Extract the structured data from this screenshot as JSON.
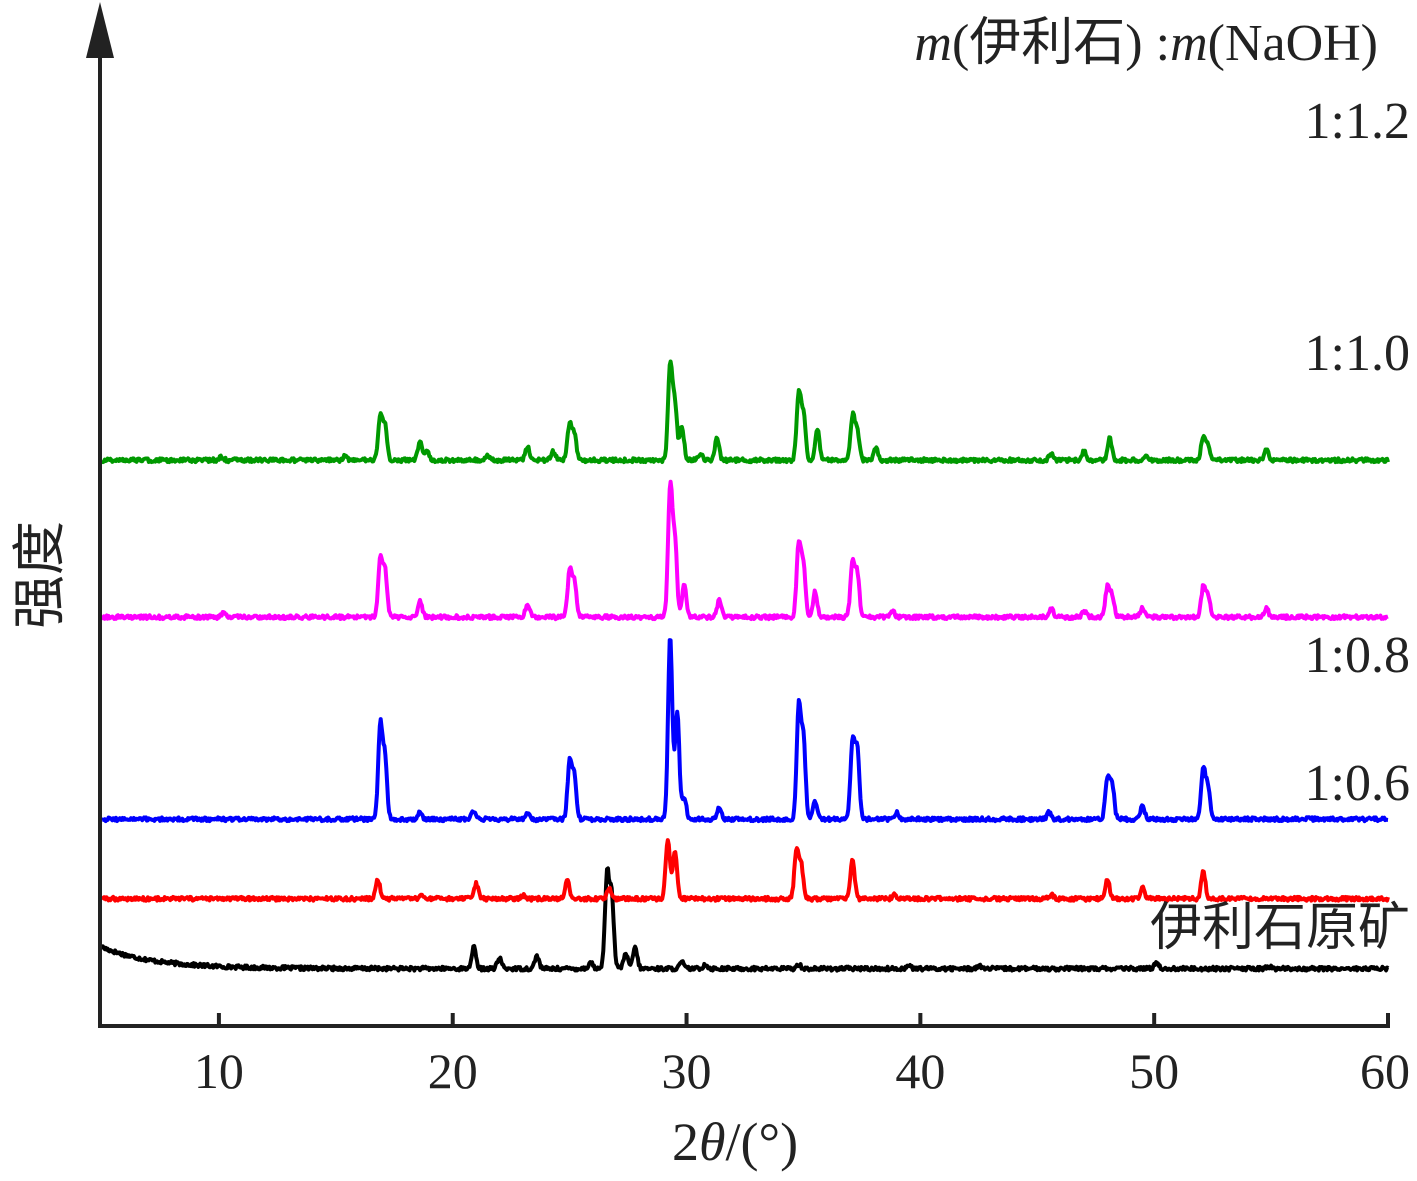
{
  "chart_data": {
    "type": "line",
    "title": "",
    "legend_title": {
      "part1": "m",
      "part2": "(伊利石) :",
      "part3": "m",
      "part4": "(NaOH)"
    },
    "xlabel": {
      "prefix": "2",
      "symbol": "θ",
      "suffix": "/(°)"
    },
    "ylabel": "强度",
    "xlim": [
      5,
      60
    ],
    "xticks": [
      10,
      20,
      30,
      40,
      50,
      60
    ],
    "stacked": true,
    "grid": false,
    "series": [
      {
        "name": "伊利石原矿",
        "color": "#000000",
        "offset": 0,
        "baseline": 0.9,
        "background_decay": {
          "amplitude": 1.0,
          "rate": 0.45
        },
        "peaks": [
          [
            20.9,
            1.0
          ],
          [
            22.0,
            0.5
          ],
          [
            23.6,
            0.6
          ],
          [
            25.9,
            0.3
          ],
          [
            26.6,
            4.3
          ],
          [
            26.8,
            3.3
          ],
          [
            27.4,
            0.7
          ],
          [
            27.8,
            1.0
          ],
          [
            29.8,
            0.3
          ],
          [
            30.8,
            0.2
          ],
          [
            34.8,
            0.2
          ],
          [
            39.5,
            0.15
          ],
          [
            42.5,
            0.15
          ],
          [
            50.1,
            0.3
          ],
          [
            54.9,
            0.1
          ]
        ]
      },
      {
        "name": "1:0.6",
        "color": "#ff0000",
        "offset": 4.0,
        "baseline": 0.15,
        "peaks": [
          [
            16.8,
            0.9
          ],
          [
            18.7,
            0.15
          ],
          [
            21.0,
            0.7
          ],
          [
            23.0,
            0.15
          ],
          [
            24.9,
            0.9
          ],
          [
            26.7,
            0.5
          ],
          [
            29.2,
            2.8
          ],
          [
            29.5,
            2.2
          ],
          [
            34.7,
            2.2
          ],
          [
            34.9,
            1.6
          ],
          [
            37.1,
            1.8
          ],
          [
            38.9,
            0.2
          ],
          [
            45.6,
            0.2
          ],
          [
            48.0,
            0.9
          ],
          [
            49.5,
            0.5
          ],
          [
            52.1,
            1.3
          ]
        ]
      },
      {
        "name": "1:0.8",
        "color": "#0000ff",
        "offset": 7.8,
        "baseline": 0.05,
        "peaks": [
          [
            16.9,
            4.3
          ],
          [
            17.1,
            2.8
          ],
          [
            18.6,
            0.3
          ],
          [
            20.9,
            0.4
          ],
          [
            23.2,
            0.3
          ],
          [
            25.0,
            2.6
          ],
          [
            25.2,
            2.0
          ],
          [
            29.3,
            8.5
          ],
          [
            29.6,
            5.0
          ],
          [
            29.9,
            1.0
          ],
          [
            31.4,
            0.5
          ],
          [
            34.8,
            5.2
          ],
          [
            35.0,
            3.6
          ],
          [
            35.5,
            0.8
          ],
          [
            37.1,
            3.6
          ],
          [
            37.3,
            3.2
          ],
          [
            39.0,
            0.3
          ],
          [
            45.5,
            0.3
          ],
          [
            48.0,
            1.9
          ],
          [
            48.2,
            1.6
          ],
          [
            49.5,
            0.6
          ],
          [
            52.1,
            2.3
          ],
          [
            52.3,
            1.5
          ]
        ]
      },
      {
        "name": "1:1.0",
        "color": "#ff00ff",
        "offset": 17.2,
        "baseline": 0.05,
        "peaks": [
          [
            10.2,
            0.2
          ],
          [
            16.9,
            2.6
          ],
          [
            17.1,
            2.2
          ],
          [
            18.6,
            0.8
          ],
          [
            23.2,
            0.6
          ],
          [
            25.0,
            2.1
          ],
          [
            25.2,
            1.6
          ],
          [
            29.3,
            6.0
          ],
          [
            29.5,
            3.5
          ],
          [
            29.9,
            1.5
          ],
          [
            31.4,
            0.8
          ],
          [
            34.8,
            3.4
          ],
          [
            35.0,
            2.4
          ],
          [
            35.5,
            1.2
          ],
          [
            37.1,
            2.5
          ],
          [
            37.3,
            2.0
          ],
          [
            38.8,
            0.3
          ],
          [
            45.6,
            0.4
          ],
          [
            47.0,
            0.3
          ],
          [
            48.0,
            1.4
          ],
          [
            48.2,
            1.0
          ],
          [
            49.5,
            0.4
          ],
          [
            52.1,
            1.4
          ],
          [
            52.3,
            1.0
          ],
          [
            54.8,
            0.4
          ]
        ]
      },
      {
        "name": "1:1.2",
        "color": "#009900",
        "offset": 24.5,
        "baseline": 0.05,
        "peaks": [
          [
            10.1,
            0.15
          ],
          [
            15.4,
            0.2
          ],
          [
            16.9,
            2.0
          ],
          [
            17.1,
            1.6
          ],
          [
            18.6,
            0.9
          ],
          [
            18.9,
            0.4
          ],
          [
            21.5,
            0.2
          ],
          [
            23.2,
            0.6
          ],
          [
            24.3,
            0.4
          ],
          [
            25.0,
            1.7
          ],
          [
            25.2,
            1.2
          ],
          [
            29.3,
            4.4
          ],
          [
            29.5,
            2.6
          ],
          [
            29.8,
            1.6
          ],
          [
            30.6,
            0.3
          ],
          [
            31.3,
            1.0
          ],
          [
            34.8,
            3.1
          ],
          [
            35.0,
            2.1
          ],
          [
            35.6,
            1.4
          ],
          [
            37.1,
            2.0
          ],
          [
            37.3,
            1.4
          ],
          [
            38.1,
            0.6
          ],
          [
            45.6,
            0.3
          ],
          [
            47.0,
            0.4
          ],
          [
            48.1,
            1.0
          ],
          [
            49.6,
            0.2
          ],
          [
            52.1,
            1.1
          ],
          [
            52.3,
            0.7
          ],
          [
            54.8,
            0.5
          ]
        ]
      }
    ]
  }
}
